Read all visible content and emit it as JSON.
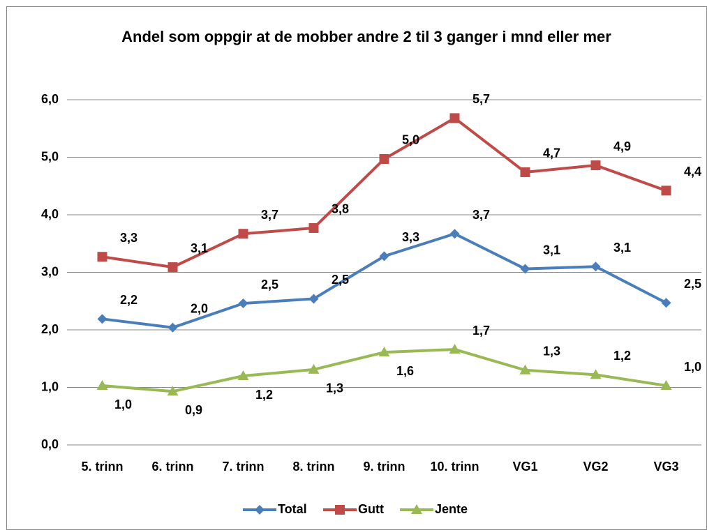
{
  "chart_data": {
    "type": "line",
    "title": "Andel som oppgir at de mobber andre 2 til 3 ganger i mnd eller mer",
    "categories": [
      "5. trinn",
      "6. trinn",
      "7. trinn",
      "8. trinn",
      "9. trinn",
      "10. trinn",
      "VG1",
      "VG2",
      "VG3"
    ],
    "series": [
      {
        "name": "Total",
        "color": "#4a7ebb",
        "marker": "diamond",
        "values": [
          2.19,
          2.04,
          2.46,
          2.54,
          3.28,
          3.67,
          3.06,
          3.1,
          2.47
        ],
        "value_labels": [
          "2,2",
          "2,0",
          "2,5",
          "2,5",
          "3,3",
          "3,7",
          "3,1",
          "3,1",
          "2,5"
        ]
      },
      {
        "name": "Gutt",
        "color": "#be4b48",
        "marker": "square",
        "values": [
          3.27,
          3.09,
          3.67,
          3.77,
          4.97,
          5.68,
          4.74,
          4.86,
          4.42
        ],
        "value_labels": [
          "3,3",
          "3,1",
          "3,7",
          "3,8",
          "5,0",
          "5,7",
          "4,7",
          "4,9",
          "4,4"
        ]
      },
      {
        "name": "Jente",
        "color": "#98b954",
        "marker": "triangle",
        "values": [
          1.03,
          0.93,
          1.2,
          1.31,
          1.61,
          1.66,
          1.3,
          1.22,
          1.03
        ],
        "value_labels": [
          "1,0",
          "0,9",
          "1,2",
          "1,3",
          "1,6",
          "1,7",
          "1,3",
          "1,2",
          "1,0"
        ]
      }
    ],
    "ylim": [
      0,
      6
    ],
    "yticks": [
      {
        "value": 0,
        "label": "0,0"
      },
      {
        "value": 1,
        "label": "1,0"
      },
      {
        "value": 2,
        "label": "2,0"
      },
      {
        "value": 3,
        "label": "3,0"
      },
      {
        "value": 4,
        "label": "4,0"
      },
      {
        "value": 5,
        "label": "5,0"
      },
      {
        "value": 6,
        "label": "6,0"
      }
    ],
    "grid": true,
    "legend": "bottom"
  }
}
